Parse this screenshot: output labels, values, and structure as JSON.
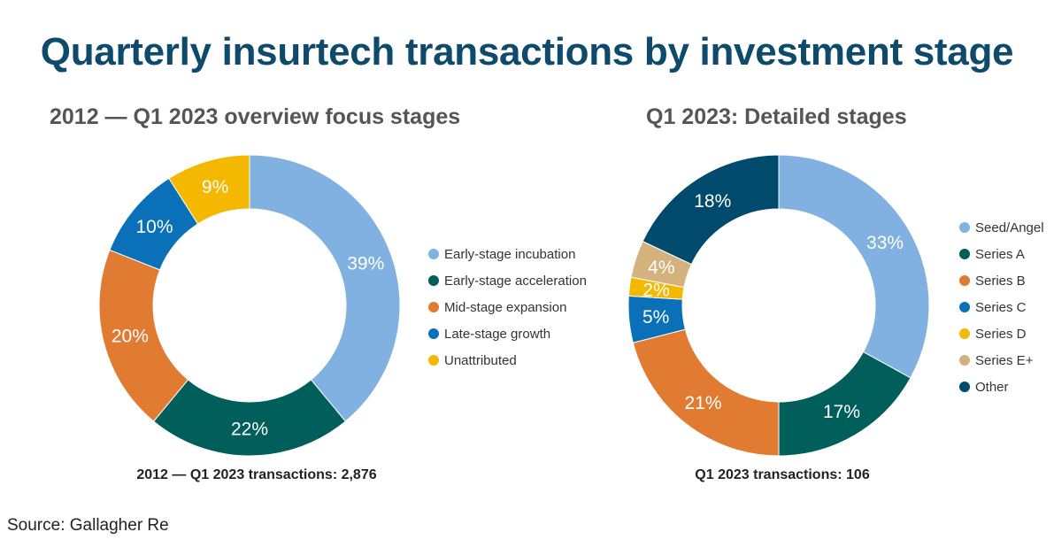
{
  "title": "Quarterly insurtech transactions by investment stage",
  "source": "Source: Gallagher Re",
  "chart_data": [
    {
      "type": "pie",
      "title": "2012 — Q1 2023 overview focus stages",
      "total_label": "2012 — Q1 2023 transactions: 2,876",
      "legend_position": "right",
      "categories": [
        "Early-stage incubation",
        "Early-stage acceleration",
        "Mid-stage expansion",
        "Late-stage growth",
        "Unattributed"
      ],
      "values": [
        39,
        22,
        20,
        10,
        9
      ],
      "labels": [
        "39%",
        "22%",
        "20%",
        "10%",
        "9%"
      ],
      "colors": [
        "#80b1e0",
        "#005f5b",
        "#e07b31",
        "#0a70b8",
        "#f5b800"
      ]
    },
    {
      "type": "pie",
      "title": "Q1 2023: Detailed stages",
      "total_label": "Q1 2023 transactions: 106",
      "legend_position": "right",
      "categories": [
        "Seed/Angel",
        "Series A",
        "Series B",
        "Series C",
        "Series D",
        "Series E+",
        "Other"
      ],
      "values": [
        33,
        17,
        21,
        5,
        2,
        4,
        18
      ],
      "labels": [
        "33%",
        "17%",
        "21%",
        "5%",
        "2%",
        "4%",
        "18%"
      ],
      "colors": [
        "#80b1e0",
        "#005f5b",
        "#e07b31",
        "#0a70b8",
        "#f5b800",
        "#d3b27e",
        "#004a6e"
      ]
    }
  ]
}
